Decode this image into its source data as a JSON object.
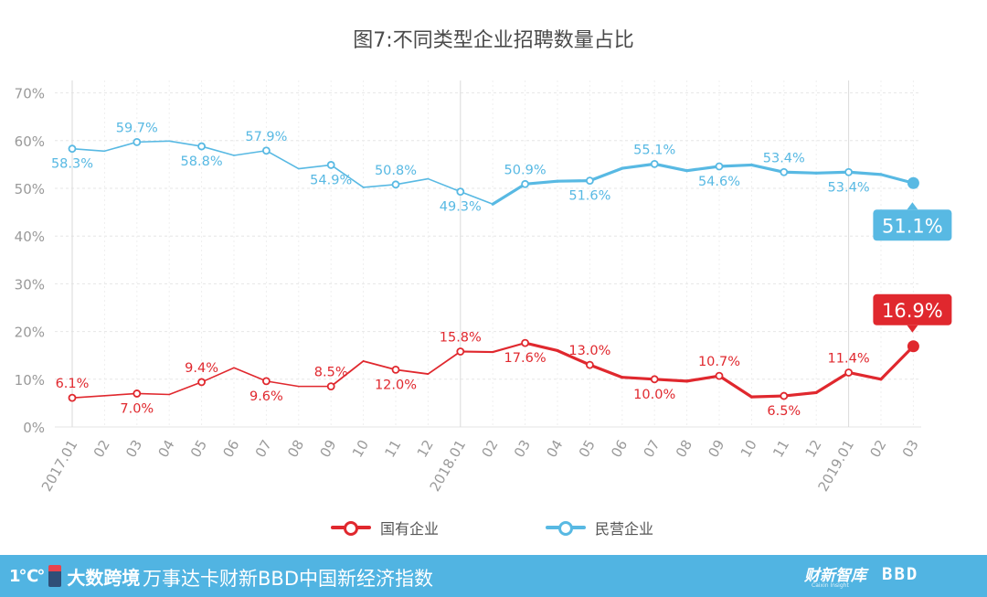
{
  "title": "图7:不同类型企业招聘数量占比",
  "footer": {
    "logo_mark": "1℃°",
    "logo_text": "大数跨境",
    "subtitle": "万事达卡财新BBD中国新经济指数",
    "brand1": "财新智库",
    "brand1_sub": "Caixin Insight",
    "brand2": "BBD"
  },
  "colors": {
    "soe": "#e0282e",
    "private": "#58b9e3",
    "grid": "#e8e8e8",
    "axis_text": "#999999",
    "footer_bg": "#51b4e2"
  },
  "chart_data": {
    "type": "line",
    "title": "图7:不同类型企业招聘数量占比",
    "categories": [
      "2017.01",
      "02",
      "03",
      "04",
      "05",
      "06",
      "07",
      "08",
      "09",
      "10",
      "11",
      "12",
      "2018.01",
      "02",
      "03",
      "04",
      "05",
      "06",
      "07",
      "08",
      "09",
      "10",
      "11",
      "12",
      "2019.01",
      "02",
      "03"
    ],
    "y_ticks": [
      "0%",
      "10%",
      "20%",
      "30%",
      "40%",
      "50%",
      "60%",
      "70%"
    ],
    "ylim": [
      0,
      70
    ],
    "grid": true,
    "legend_position": "bottom",
    "series": [
      {
        "name": "国有企业",
        "color": "#e0282e",
        "values": [
          6.1,
          null,
          7.0,
          6.8,
          9.4,
          12.4,
          9.6,
          8.5,
          8.5,
          13.8,
          12.0,
          11.1,
          15.8,
          15.7,
          17.6,
          16.0,
          13.0,
          10.4,
          10.0,
          9.6,
          10.7,
          6.3,
          6.5,
          7.2,
          11.4,
          10.0,
          16.9
        ],
        "markers": [
          0,
          2,
          4,
          6,
          8,
          10,
          12,
          14,
          16,
          18,
          20,
          22,
          24,
          26
        ],
        "labels": [
          {
            "i": 0,
            "text": "6.1%",
            "pos": "above"
          },
          {
            "i": 2,
            "text": "7.0%",
            "pos": "below"
          },
          {
            "i": 4,
            "text": "9.4%",
            "pos": "above"
          },
          {
            "i": 6,
            "text": "9.6%",
            "pos": "below"
          },
          {
            "i": 8,
            "text": "8.5%",
            "pos": "above"
          },
          {
            "i": 10,
            "text": "12.0%",
            "pos": "below"
          },
          {
            "i": 12,
            "text": "15.8%",
            "pos": "above"
          },
          {
            "i": 14,
            "text": "17.6%",
            "pos": "below"
          },
          {
            "i": 16,
            "text": "13.0%",
            "pos": "above"
          },
          {
            "i": 18,
            "text": "10.0%",
            "pos": "below"
          },
          {
            "i": 20,
            "text": "10.7%",
            "pos": "above"
          },
          {
            "i": 22,
            "text": "6.5%",
            "pos": "below"
          },
          {
            "i": 24,
            "text": "11.4%",
            "pos": "above"
          }
        ],
        "callout": {
          "i": 26,
          "text": "16.9%"
        }
      },
      {
        "name": "民营企业",
        "color": "#58b9e3",
        "values": [
          58.3,
          57.8,
          59.7,
          59.9,
          58.8,
          56.9,
          57.9,
          54.1,
          54.9,
          50.2,
          50.8,
          52.0,
          49.3,
          46.7,
          50.9,
          51.5,
          51.6,
          54.2,
          55.1,
          53.7,
          54.6,
          54.9,
          53.4,
          53.2,
          53.4,
          52.9,
          51.1
        ],
        "markers": [
          0,
          2,
          4,
          6,
          8,
          10,
          12,
          14,
          16,
          18,
          20,
          22,
          24,
          26
        ],
        "labels": [
          {
            "i": 0,
            "text": "58.3%",
            "pos": "below"
          },
          {
            "i": 2,
            "text": "59.7%",
            "pos": "above"
          },
          {
            "i": 4,
            "text": "58.8%",
            "pos": "below"
          },
          {
            "i": 6,
            "text": "57.9%",
            "pos": "above"
          },
          {
            "i": 8,
            "text": "54.9%",
            "pos": "below"
          },
          {
            "i": 10,
            "text": "50.8%",
            "pos": "above"
          },
          {
            "i": 12,
            "text": "49.3%",
            "pos": "below"
          },
          {
            "i": 14,
            "text": "50.9%",
            "pos": "above"
          },
          {
            "i": 16,
            "text": "51.6%",
            "pos": "below"
          },
          {
            "i": 18,
            "text": "55.1%",
            "pos": "above"
          },
          {
            "i": 20,
            "text": "54.6%",
            "pos": "below"
          },
          {
            "i": 22,
            "text": "53.4%",
            "pos": "above"
          },
          {
            "i": 24,
            "text": "53.4%",
            "pos": "below"
          }
        ],
        "callout": {
          "i": 26,
          "text": "51.1%"
        }
      }
    ]
  }
}
